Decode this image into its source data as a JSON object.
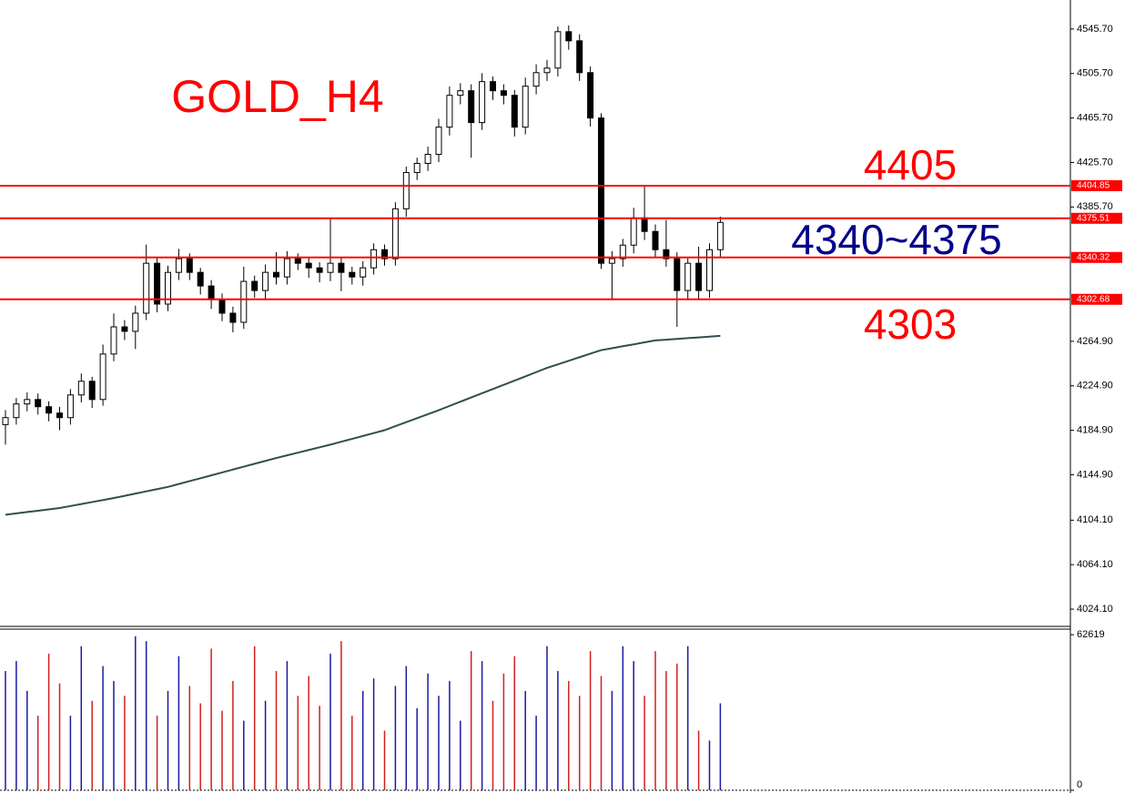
{
  "chart_data": [
    {
      "type": "candlestick",
      "title": "GOLD_H4",
      "annotations": [
        "4405",
        "4340~4375",
        "4303"
      ],
      "annotation_colors": [
        "#ff0000",
        "#00008b",
        "#ff0000"
      ],
      "up_color": "#ffffff",
      "down_color": "#000000",
      "edge_color": "#000000",
      "open": [
        4190.0,
        4196.3,
        4208.6,
        4212.6,
        4206.1,
        4200.4,
        4196.3,
        4216.7,
        4229.0,
        4212.6,
        4253.5,
        4277.9,
        4273.9,
        4290.2,
        4335.1,
        4298.4,
        4326.9,
        4339.2,
        4326.9,
        4314.7,
        4302.4,
        4290.2,
        4282.0,
        4318.8,
        4310.6,
        4326.9,
        4322.8,
        4339.2,
        4335.1,
        4331.0,
        4326.9,
        4335.1,
        4326.9,
        4322.8,
        4331.0,
        4347.3,
        4339.2,
        4384.1,
        4416.7,
        4424.9,
        4433.0,
        4457.5,
        4486.1,
        4490.2,
        4461.6,
        4498.4,
        4490.2,
        4486.1,
        4457.5,
        4494.3,
        4506.5,
        4510.6,
        4543.3,
        4535.1,
        4506.5,
        4465.7,
        4335.1,
        4339.2,
        4351.4,
        4375.9,
        4363.7,
        4347.3,
        4339.2,
        4310.6,
        4335.1,
        4310.6,
        4347.3
      ],
      "high": [
        4203,
        4214,
        4219,
        4218,
        4211,
        4206,
        4222,
        4236,
        4233,
        4262,
        4290,
        4284,
        4297,
        4352,
        4340,
        4333,
        4348,
        4344,
        4331,
        4320,
        4308,
        4296,
        4332,
        4324,
        4334,
        4345,
        4346,
        4344,
        4340,
        4336,
        4376,
        4340,
        4332,
        4337,
        4353,
        4352,
        4390,
        4422,
        4430,
        4440,
        4465,
        4494,
        4497,
        4496,
        4506,
        4503,
        4496,
        4491,
        4502,
        4514,
        4518,
        4548,
        4549,
        4541,
        4512,
        4470,
        4346,
        4357,
        4385,
        4404,
        4370,
        4374,
        4345,
        4341,
        4350,
        4353,
        4377
      ],
      "low": [
        4172,
        4190,
        4202,
        4199,
        4193,
        4185,
        4190,
        4210,
        4205,
        4207,
        4247,
        4266,
        4258,
        4284,
        4291,
        4292,
        4320,
        4320,
        4307,
        4294,
        4283,
        4273,
        4276,
        4304,
        4303,
        4316,
        4316,
        4329,
        4322,
        4318,
        4319,
        4310,
        4316,
        4315,
        4325,
        4333,
        4333,
        4377,
        4410,
        4418,
        4426,
        4450,
        4478,
        4430,
        4455,
        4482,
        4478,
        4449,
        4451,
        4487,
        4499,
        4503,
        4527,
        4499,
        4458,
        4330,
        4302,
        4332,
        4344,
        4356,
        4340,
        4332,
        4278,
        4302,
        4303,
        4304,
        4340
      ],
      "close": [
        4196.3,
        4208.6,
        4212.6,
        4206.1,
        4200.4,
        4196.3,
        4216.7,
        4229.0,
        4212.6,
        4253.5,
        4277.9,
        4273.9,
        4290.2,
        4335.1,
        4298.4,
        4326.9,
        4339.2,
        4326.9,
        4314.7,
        4302.4,
        4290.2,
        4282.0,
        4318.8,
        4310.6,
        4326.9,
        4322.8,
        4339.2,
        4335.1,
        4331.0,
        4326.9,
        4335.1,
        4326.9,
        4322.8,
        4331.0,
        4347.3,
        4339.2,
        4384.1,
        4416.7,
        4424.9,
        4433.0,
        4457.5,
        4486.1,
        4490.2,
        4461.6,
        4498.4,
        4490.2,
        4486.1,
        4457.5,
        4494.3,
        4506.5,
        4510.6,
        4543.3,
        4535.1,
        4506.5,
        4465.7,
        4335.1,
        4339.2,
        4351.4,
        4375.9,
        4363.7,
        4347.3,
        4339.2,
        4310.6,
        4335.1,
        4310.6,
        4347.3,
        4371.8
      ],
      "ma": {
        "color": "#2f4f4f",
        "values": [
          4109.0,
          4110.2,
          4111.4,
          4112.6,
          4113.8,
          4115.0,
          4116.8,
          4118.6,
          4120.4,
          4122.2,
          4124.0,
          4126.0,
          4128.0,
          4130.0,
          4132.0,
          4134.0,
          4136.6,
          4139.2,
          4141.8,
          4144.4,
          4147.0,
          4149.6,
          4152.2,
          4154.8,
          4157.4,
          4160.0,
          4162.4,
          4164.8,
          4167.2,
          4169.6,
          4172.0,
          4174.6,
          4177.2,
          4179.8,
          4182.4,
          4185.0,
          4188.6,
          4192.2,
          4195.8,
          4199.4,
          4203.0,
          4206.8,
          4210.6,
          4214.4,
          4218.2,
          4222.0,
          4225.8,
          4229.6,
          4233.4,
          4237.2,
          4241.0,
          4244.2,
          4247.4,
          4250.6,
          4253.8,
          4257.0,
          4258.7,
          4260.5,
          4262.2,
          4264.0,
          4265.7,
          4266.4,
          4267.1,
          4267.8,
          4268.4,
          4269.1,
          4269.8
        ]
      },
      "levels": [
        4404.85,
        4375.51,
        4340.32,
        4302.68
      ],
      "level_color": "#ff0000",
      "ylim": [
        4008.6,
        4571.8
      ],
      "yticks": [
        {
          "value": 4545.7,
          "label": "4545.70"
        },
        {
          "value": 4505.7,
          "label": "4505.70"
        },
        {
          "value": 4465.7,
          "label": "4465.70"
        },
        {
          "value": 4425.7,
          "label": "4425.70"
        },
        {
          "value": 4385.7,
          "label": "4385.70"
        },
        {
          "value": 4264.9,
          "label": "4264.90"
        },
        {
          "value": 4224.9,
          "label": "4224.90"
        },
        {
          "value": 4184.9,
          "label": "4184.90"
        },
        {
          "value": 4144.9,
          "label": "4144.90"
        },
        {
          "value": 4104.1,
          "label": "4104.10"
        },
        {
          "value": 4064.1,
          "label": "4064.10"
        },
        {
          "value": 4024.1,
          "label": "4024.10"
        }
      ]
    },
    {
      "type": "bar",
      "up_color": "#1a1aa6",
      "down_color": "#d21f1f",
      "values": [
        48000,
        52000,
        40000,
        30000,
        55000,
        43000,
        30000,
        58000,
        36000,
        50000,
        44000,
        38000,
        62000,
        60000,
        30000,
        40000,
        54000,
        42000,
        35000,
        57000,
        32000,
        44000,
        28000,
        58000,
        36000,
        48000,
        52000,
        38000,
        46000,
        34000,
        55000,
        60000,
        30000,
        40000,
        45000,
        24000,
        42000,
        50000,
        33000,
        47000,
        38000,
        44000,
        28000,
        56000,
        52000,
        36000,
        47000,
        54000,
        40000,
        30000,
        58000,
        48000,
        44000,
        38000,
        56000,
        46000,
        40000,
        58000,
        52000,
        38000,
        56000,
        48000,
        51000,
        58000,
        24000,
        20000,
        35000
      ],
      "ylim": [
        0,
        64500
      ],
      "yticks": [
        0,
        62619
      ]
    }
  ]
}
